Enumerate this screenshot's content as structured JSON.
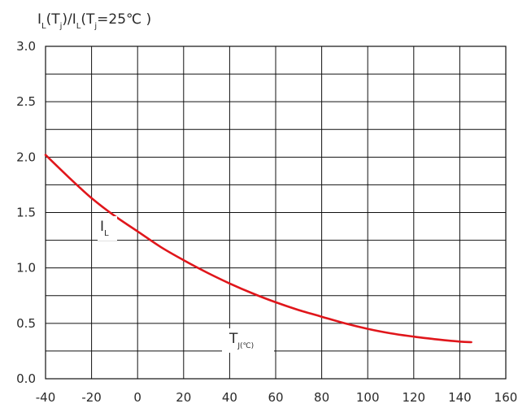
{
  "chart_data": {
    "type": "line",
    "ylabel": {
      "p1": "I",
      "s1": "L",
      "p2": "(T",
      "s2": "j",
      "p3": ")/I",
      "s3": "L",
      "p4": "(T",
      "s4": "j",
      "p5": "=25℃ )"
    },
    "annotations": {
      "curve": {
        "main": "I",
        "sub": "L"
      },
      "axis": {
        "main": "T",
        "sub": "J(℃)"
      }
    },
    "xlim": [
      -40,
      160
    ],
    "ylim": [
      0,
      3.0
    ],
    "x_ticks": [
      -40,
      -20,
      0,
      20,
      40,
      60,
      80,
      100,
      120,
      140,
      160
    ],
    "x_tick_labels": [
      "-40",
      "-20",
      "0",
      "20",
      "40",
      "60",
      "80",
      "100",
      "120",
      "140",
      "160"
    ],
    "y_ticks": [
      0,
      0.25,
      0.5,
      0.75,
      1.0,
      1.25,
      1.5,
      1.75,
      2.0,
      2.25,
      2.5,
      2.75,
      3.0
    ],
    "y_tick_labels": [
      {
        "value": 0,
        "label": "0.0"
      },
      {
        "value": 0.5,
        "label": "0.5"
      },
      {
        "value": 1.0,
        "label": "1.0"
      },
      {
        "value": 1.5,
        "label": "1.5"
      },
      {
        "value": 2.0,
        "label": "2.0"
      },
      {
        "value": 2.5,
        "label": "2.5"
      },
      {
        "value": 3.0,
        "label": "3.0"
      }
    ],
    "grid": true,
    "series": [
      {
        "color": "#e0161b",
        "x": [
          -40,
          -30,
          -20,
          -10,
          0,
          10,
          20,
          30,
          40,
          50,
          60,
          70,
          80,
          90,
          100,
          110,
          120,
          130,
          140,
          145
        ],
        "y": [
          2.02,
          1.82,
          1.63,
          1.47,
          1.33,
          1.19,
          1.07,
          0.96,
          0.86,
          0.77,
          0.69,
          0.62,
          0.56,
          0.5,
          0.45,
          0.41,
          0.38,
          0.355,
          0.335,
          0.33
        ]
      }
    ]
  }
}
